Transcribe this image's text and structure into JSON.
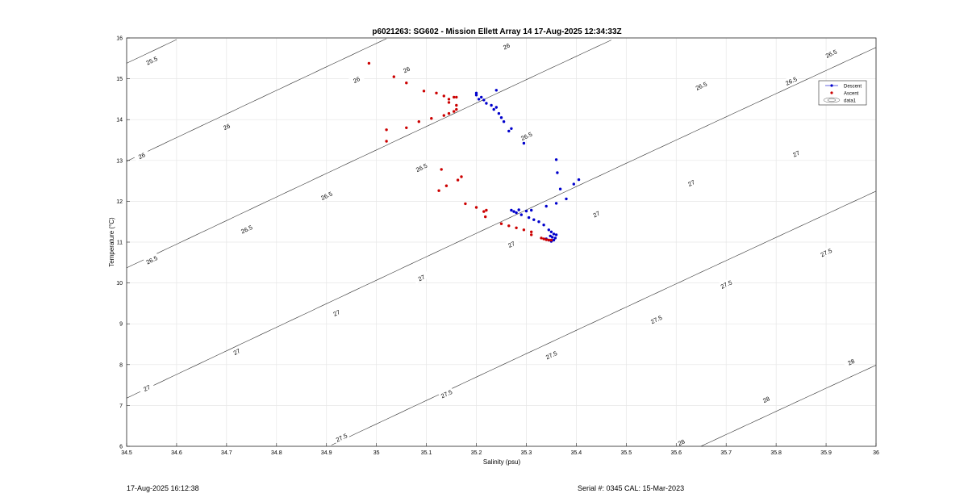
{
  "footer": {
    "timestamp": "17-Aug-2025 16:12:38",
    "serial": "Serial #: 0345  CAL: 15-Mar-2023"
  },
  "colors": {
    "descent": "#0000cc",
    "ascent": "#cc0000",
    "grid": "#e6e6e6",
    "contour": "#333333"
  },
  "chart_data": {
    "type": "scatter",
    "title": "p6021263: SG602 - Mission Ellett Array 14 17-Aug-2025 12:34:33Z",
    "xlabel": "Salinity (psu)",
    "ylabel": "Temperature (°C)",
    "xlim": [
      34.5,
      36
    ],
    "ylim": [
      6,
      16
    ],
    "xticks": [
      "34.5",
      "34.6",
      "34.7",
      "34.8",
      "34.9",
      "35",
      "35.1",
      "35.2",
      "35.3",
      "35.4",
      "35.5",
      "35.6",
      "35.7",
      "35.8",
      "35.9",
      "36"
    ],
    "yticks": [
      "6",
      "7",
      "8",
      "9",
      "10",
      "11",
      "12",
      "13",
      "14",
      "15",
      "16"
    ],
    "grid": true,
    "legend_position": "top-right",
    "legend": [
      "Descent",
      "Ascent",
      "data1"
    ],
    "contours": {
      "levels": [
        25.5,
        26,
        26.5,
        27,
        27.5,
        28
      ],
      "labels": [
        {
          "level": "25.5",
          "s": 34.55,
          "t": 15.45
        },
        {
          "level": "26",
          "s": 34.53,
          "t": 13.12
        },
        {
          "level": "26",
          "s": 34.7,
          "t": 13.83
        },
        {
          "level": "26",
          "s": 34.96,
          "t": 14.98
        },
        {
          "level": "26",
          "s": 35.06,
          "t": 15.23
        },
        {
          "level": "26",
          "s": 35.26,
          "t": 15.8
        },
        {
          "level": "26.5",
          "s": 34.55,
          "t": 10.57
        },
        {
          "level": "26.5",
          "s": 34.74,
          "t": 11.32
        },
        {
          "level": "26.5",
          "s": 34.9,
          "t": 12.14
        },
        {
          "level": "26.5",
          "s": 35.09,
          "t": 12.83
        },
        {
          "level": "26.5",
          "s": 35.3,
          "t": 13.6
        },
        {
          "level": "26.5",
          "s": 35.65,
          "t": 14.83
        },
        {
          "level": "26.5",
          "s": 35.83,
          "t": 14.95
        },
        {
          "level": "26.5",
          "s": 35.91,
          "t": 15.62
        },
        {
          "level": "27",
          "s": 34.54,
          "t": 7.43
        },
        {
          "level": "27",
          "s": 34.72,
          "t": 8.32
        },
        {
          "level": "27",
          "s": 34.92,
          "t": 9.27
        },
        {
          "level": "27",
          "s": 35.09,
          "t": 10.13
        },
        {
          "level": "27",
          "s": 35.27,
          "t": 10.95
        },
        {
          "level": "27",
          "s": 35.44,
          "t": 11.69
        },
        {
          "level": "27",
          "s": 35.63,
          "t": 12.45
        },
        {
          "level": "27",
          "s": 35.84,
          "t": 13.17
        },
        {
          "level": "27.5",
          "s": 34.93,
          "t": 6.22
        },
        {
          "level": "27.5",
          "s": 35.14,
          "t": 7.29
        },
        {
          "level": "27.5",
          "s": 35.35,
          "t": 8.24
        },
        {
          "level": "27.5",
          "s": 35.56,
          "t": 9.11
        },
        {
          "level": "27.5",
          "s": 35.7,
          "t": 9.97
        },
        {
          "level": "27.5",
          "s": 35.9,
          "t": 10.75
        },
        {
          "level": "28",
          "s": 35.61,
          "t": 6.1
        },
        {
          "level": "28",
          "s": 35.78,
          "t": 7.15
        },
        {
          "level": "28",
          "s": 35.95,
          "t": 8.07
        }
      ]
    },
    "series": [
      {
        "name": "Descent",
        "points": [
          [
            35.2,
            14.65
          ],
          [
            35.2,
            14.6
          ],
          [
            35.205,
            14.5
          ],
          [
            35.21,
            14.55
          ],
          [
            35.215,
            14.48
          ],
          [
            35.22,
            14.4
          ],
          [
            35.23,
            14.35
          ],
          [
            35.235,
            14.25
          ],
          [
            35.24,
            14.3
          ],
          [
            35.24,
            14.72
          ],
          [
            35.245,
            14.15
          ],
          [
            35.25,
            14.05
          ],
          [
            35.255,
            13.95
          ],
          [
            35.265,
            13.72
          ],
          [
            35.27,
            13.78
          ],
          [
            35.295,
            13.42
          ],
          [
            35.36,
            13.02
          ],
          [
            35.362,
            12.7
          ],
          [
            35.368,
            12.3
          ],
          [
            35.38,
            12.06
          ],
          [
            35.395,
            12.42
          ],
          [
            35.405,
            12.53
          ],
          [
            35.36,
            11.95
          ],
          [
            35.34,
            11.88
          ],
          [
            35.31,
            11.78
          ],
          [
            35.3,
            11.76
          ],
          [
            35.285,
            11.79
          ],
          [
            35.275,
            11.75
          ],
          [
            35.27,
            11.78
          ],
          [
            35.28,
            11.72
          ],
          [
            35.29,
            11.67
          ],
          [
            35.305,
            11.6
          ],
          [
            35.315,
            11.55
          ],
          [
            35.325,
            11.5
          ],
          [
            35.335,
            11.42
          ],
          [
            35.345,
            11.3
          ],
          [
            35.35,
            11.25
          ],
          [
            35.355,
            11.2
          ],
          [
            35.36,
            11.18
          ],
          [
            35.358,
            11.1
          ],
          [
            35.355,
            11.05
          ],
          [
            35.35,
            11.02
          ],
          [
            35.345,
            11.05
          ],
          [
            35.34,
            11.08
          ],
          [
            35.352,
            11.12
          ],
          [
            35.348,
            11.15
          ]
        ]
      },
      {
        "name": "Ascent",
        "points": [
          [
            34.985,
            15.38
          ],
          [
            35.035,
            15.05
          ],
          [
            35.06,
            14.9
          ],
          [
            35.095,
            14.7
          ],
          [
            35.12,
            14.65
          ],
          [
            35.135,
            14.58
          ],
          [
            35.145,
            14.5
          ],
          [
            35.145,
            14.42
          ],
          [
            35.155,
            14.55
          ],
          [
            35.16,
            14.55
          ],
          [
            35.16,
            14.35
          ],
          [
            35.16,
            14.25
          ],
          [
            35.155,
            14.2
          ],
          [
            35.145,
            14.15
          ],
          [
            35.135,
            14.1
          ],
          [
            35.11,
            14.03
          ],
          [
            35.085,
            13.95
          ],
          [
            35.06,
            13.8
          ],
          [
            35.02,
            13.75
          ],
          [
            35.02,
            13.47
          ],
          [
            35.13,
            12.78
          ],
          [
            35.17,
            12.6
          ],
          [
            35.163,
            12.52
          ],
          [
            35.14,
            12.38
          ],
          [
            35.125,
            12.26
          ],
          [
            35.178,
            11.94
          ],
          [
            35.2,
            11.85
          ],
          [
            35.22,
            11.78
          ],
          [
            35.215,
            11.75
          ],
          [
            35.218,
            11.62
          ],
          [
            35.25,
            11.45
          ],
          [
            35.265,
            11.4
          ],
          [
            35.28,
            11.35
          ],
          [
            35.295,
            11.3
          ],
          [
            35.31,
            11.25
          ],
          [
            35.31,
            11.18
          ],
          [
            35.33,
            11.1
          ],
          [
            35.335,
            11.08
          ],
          [
            35.34,
            11.06
          ],
          [
            35.345,
            11.05
          ],
          [
            35.35,
            11.05
          ]
        ]
      }
    ]
  }
}
